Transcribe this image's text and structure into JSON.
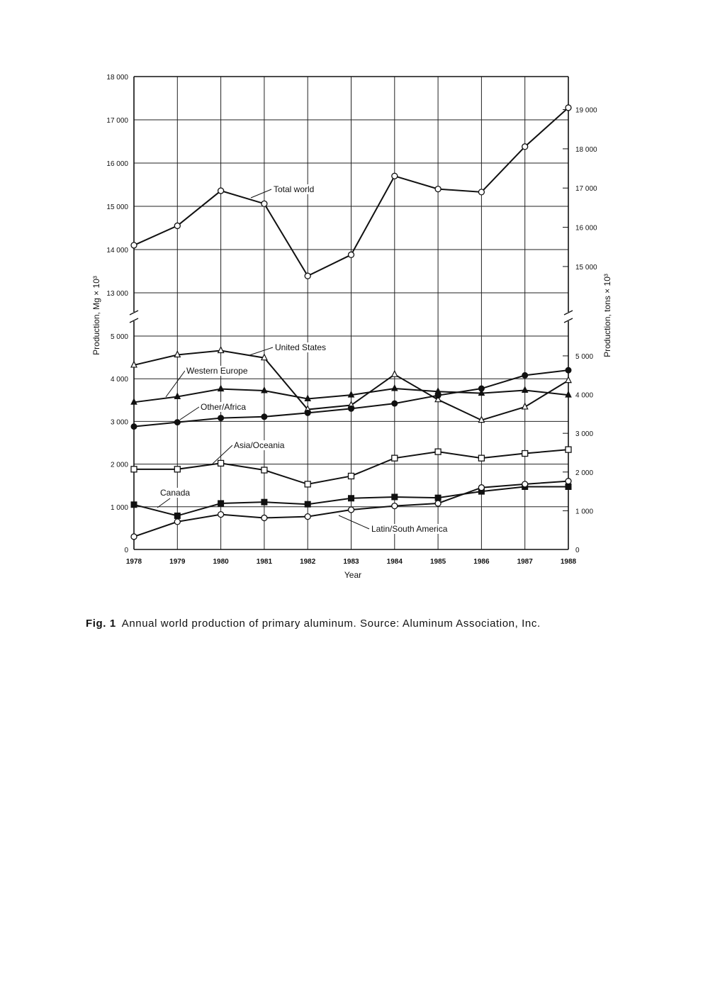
{
  "figure": {
    "caption_label": "Fig. 1",
    "caption_text": "Annual world production of primary aluminum. Source: Aluminum Association, Inc."
  },
  "chart_data": {
    "type": "line",
    "title": "",
    "xlabel": "Year",
    "ylabel": "Production, Mg × 10³",
    "ylabel_right": "Production, tons × 10³",
    "x": [
      1978,
      1979,
      1980,
      1981,
      1982,
      1983,
      1984,
      1985,
      1986,
      1987,
      1988
    ],
    "x_ticks": [
      "1978",
      "1979",
      "1980",
      "1981",
      "1982",
      "1983",
      "1984",
      "1985",
      "1986",
      "1987",
      "1988"
    ],
    "y_axis_break": {
      "lower_range": [
        0,
        5000
      ],
      "upper_range": [
        13000,
        18000
      ]
    },
    "y_ticks_left": [
      "0",
      "1 000",
      "2 000",
      "3 000",
      "4 000",
      "5 000",
      "13 000",
      "14 000",
      "15 000",
      "16 000",
      "17 000",
      "18 000"
    ],
    "y_ticks_right_lower": [
      "0",
      "1 000",
      "2 000",
      "3 000",
      "4 000",
      "5 000"
    ],
    "y_ticks_right_upper": [
      "15 000",
      "16 000",
      "17 000",
      "18 000",
      "19 000"
    ],
    "grid": true,
    "series": [
      {
        "name": "Total world",
        "marker": "open-circle",
        "values": [
          14100,
          14550,
          15360,
          15060,
          13390,
          13880,
          15700,
          15400,
          15330,
          16380,
          17280
        ]
      },
      {
        "name": "United States",
        "marker": "open-triangle",
        "values": [
          4320,
          4560,
          4660,
          4490,
          3280,
          3380,
          4100,
          3510,
          3030,
          3340,
          3960
        ]
      },
      {
        "name": "Western Europe",
        "marker": "filled-triangle",
        "values": [
          3450,
          3580,
          3760,
          3720,
          3530,
          3620,
          3770,
          3700,
          3660,
          3730,
          3620
        ]
      },
      {
        "name": "Other/Africa",
        "marker": "filled-circle",
        "values": [
          2880,
          2980,
          3080,
          3110,
          3200,
          3300,
          3420,
          3610,
          3770,
          4080,
          4200
        ]
      },
      {
        "name": "Asia/Oceania",
        "marker": "open-square",
        "values": [
          1880,
          1880,
          2020,
          1860,
          1530,
          1720,
          2140,
          2290,
          2140,
          2250,
          2340
        ]
      },
      {
        "name": "Canada",
        "marker": "filled-square",
        "values": [
          1050,
          790,
          1080,
          1110,
          1060,
          1200,
          1230,
          1210,
          1360,
          1470,
          1470
        ]
      },
      {
        "name": "Latin/South America",
        "marker": "open-diamond",
        "values": [
          300,
          650,
          820,
          740,
          770,
          930,
          1020,
          1080,
          1450,
          1530,
          1600
        ]
      }
    ]
  }
}
